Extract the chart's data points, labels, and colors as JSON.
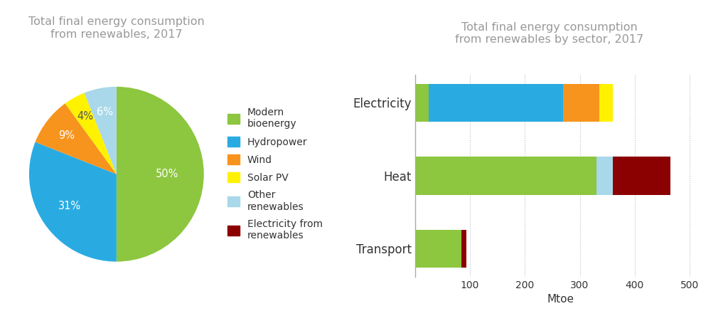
{
  "pie_title": "Total final energy consumption\nfrom renewables, 2017",
  "bar_title": "Total final energy consumption\nfrom renewables by sector, 2017",
  "pie_labels": [
    "Modern\nbioenergy",
    "Hydropower",
    "Wind",
    "Solar PV",
    "Other\nrenewables",
    "Electricity from\nrenewables"
  ],
  "pie_values": [
    50,
    31,
    9,
    4,
    6,
    0
  ],
  "pie_colors": [
    "#8DC63F",
    "#29ABE2",
    "#F7941D",
    "#FFF200",
    "#A8D8EA",
    "#8B0000"
  ],
  "pie_pct_labels": [
    "50%",
    "31%",
    "9%",
    "4%",
    "6%"
  ],
  "bar_categories": [
    "Transport",
    "Heat",
    "Electricity"
  ],
  "bar_segments": {
    "Modern bioenergy": [
      85,
      330,
      25
    ],
    "Hydropower": [
      0,
      0,
      245
    ],
    "Wind": [
      0,
      0,
      65
    ],
    "Solar PV": [
      0,
      0,
      25
    ],
    "Other renewables": [
      0,
      30,
      0
    ],
    "Electricity from renewables": [
      8,
      105,
      0
    ]
  },
  "bar_colors": {
    "Modern bioenergy": "#8DC63F",
    "Hydropower": "#29ABE2",
    "Wind": "#F7941D",
    "Solar PV": "#FFF200",
    "Other renewables": "#A8D8EA",
    "Electricity from renewables": "#8B0000"
  },
  "bar_xlim": [
    0,
    530
  ],
  "bar_xlabel": "Mtoe",
  "title_color": "#999999",
  "label_color": "#333333",
  "background_color": "#ffffff"
}
